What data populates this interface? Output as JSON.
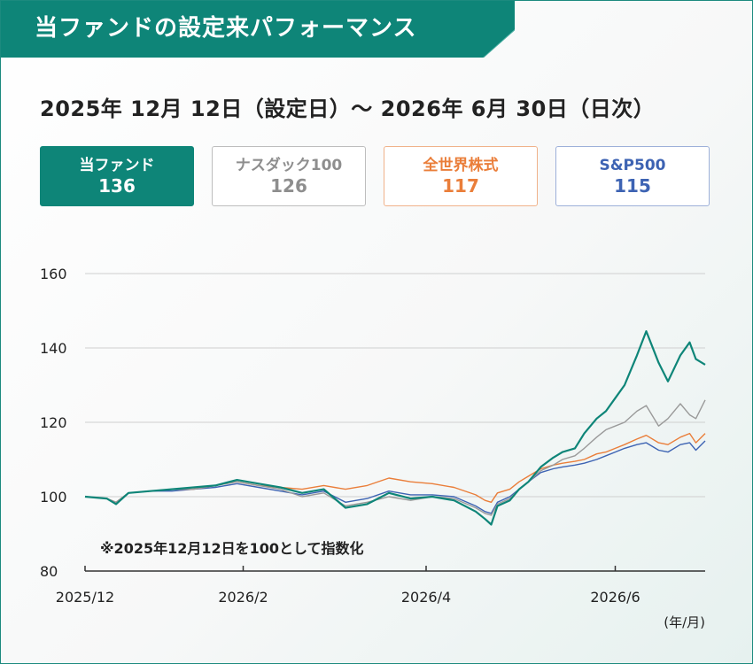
{
  "header": {
    "title": "当ファンドの設定来パフォーマンス",
    "period": "2025年 12月 12日（設定日）～ 2026年 6月 30日（日次）"
  },
  "legend": [
    {
      "name": "当ファンド",
      "value": "136",
      "color": "#0e8578"
    },
    {
      "name": "ナスダック100",
      "value": "126",
      "color": "#9a9a9a"
    },
    {
      "name": "全世界株式",
      "value": "117",
      "color": "#ea7e3a"
    },
    {
      "name": "S&P500",
      "value": "115",
      "color": "#3d63b3"
    }
  ],
  "chart_data": {
    "type": "line",
    "title": "当ファンドの設定来パフォーマンス",
    "xlabel": "",
    "ylabel": "",
    "x_unit": "(年/月)",
    "note": "※2025年12月12日を100として指数化",
    "ylim": [
      80,
      160
    ],
    "yticks": [
      80,
      100,
      120,
      140,
      160
    ],
    "x_range": [
      "2025-12-12",
      "2026-06-30"
    ],
    "x_tick_labels": [
      {
        "label": "2025/12",
        "date": "2025-12-12"
      },
      {
        "label": "2026/2",
        "date": "2026-02-01"
      },
      {
        "label": "2026/4",
        "date": "2026-04-01"
      },
      {
        "label": "2026/6",
        "date": "2026-06-01"
      }
    ],
    "grid": "horizontal",
    "series": [
      {
        "name": "当ファンド",
        "color": "#0e8578",
        "points": [
          [
            "2025-12-12",
            100
          ],
          [
            "2025-12-19",
            99.5
          ],
          [
            "2025-12-22",
            98
          ],
          [
            "2025-12-26",
            101
          ],
          [
            "2026-01-02",
            101.5
          ],
          [
            "2026-01-09",
            102
          ],
          [
            "2026-01-16",
            102.5
          ],
          [
            "2026-01-23",
            103
          ],
          [
            "2026-01-30",
            104.5
          ],
          [
            "2026-02-06",
            103.5
          ],
          [
            "2026-02-13",
            102.5
          ],
          [
            "2026-02-20",
            101
          ],
          [
            "2026-02-27",
            102
          ],
          [
            "2026-03-06",
            97
          ],
          [
            "2026-03-13",
            98
          ],
          [
            "2026-03-20",
            101
          ],
          [
            "2026-03-27",
            99.5
          ],
          [
            "2026-04-03",
            100
          ],
          [
            "2026-04-10",
            99
          ],
          [
            "2026-04-17",
            96
          ],
          [
            "2026-04-20",
            94
          ],
          [
            "2026-04-22",
            92.5
          ],
          [
            "2026-04-24",
            97.5
          ],
          [
            "2026-04-28",
            99
          ],
          [
            "2026-05-01",
            102
          ],
          [
            "2026-05-04",
            104
          ],
          [
            "2026-05-08",
            108
          ],
          [
            "2026-05-12",
            110.5
          ],
          [
            "2026-05-15",
            112
          ],
          [
            "2026-05-19",
            113
          ],
          [
            "2026-05-22",
            117
          ],
          [
            "2026-05-26",
            121
          ],
          [
            "2026-05-29",
            123
          ],
          [
            "2026-06-01",
            126.5
          ],
          [
            "2026-06-04",
            130
          ],
          [
            "2026-06-08",
            138
          ],
          [
            "2026-06-11",
            144.5
          ],
          [
            "2026-06-15",
            136
          ],
          [
            "2026-06-18",
            131
          ],
          [
            "2026-06-22",
            138
          ],
          [
            "2026-06-25",
            141.5
          ],
          [
            "2026-06-27",
            137
          ],
          [
            "2026-06-30",
            135.5
          ]
        ]
      },
      {
        "name": "ナスダック100",
        "color": "#9a9a9a",
        "points": [
          [
            "2025-12-12",
            100
          ],
          [
            "2025-12-19",
            99.5
          ],
          [
            "2025-12-22",
            98.5
          ],
          [
            "2025-12-26",
            101
          ],
          [
            "2026-01-02",
            101.5
          ],
          [
            "2026-01-09",
            102
          ],
          [
            "2026-01-16",
            102
          ],
          [
            "2026-01-23",
            103
          ],
          [
            "2026-01-30",
            104
          ],
          [
            "2026-02-06",
            103
          ],
          [
            "2026-02-13",
            102
          ],
          [
            "2026-02-20",
            100
          ],
          [
            "2026-02-27",
            101
          ],
          [
            "2026-03-06",
            97.5
          ],
          [
            "2026-03-13",
            98.5
          ],
          [
            "2026-03-20",
            100
          ],
          [
            "2026-03-27",
            99
          ],
          [
            "2026-04-03",
            100
          ],
          [
            "2026-04-10",
            99.5
          ],
          [
            "2026-04-17",
            97
          ],
          [
            "2026-04-20",
            95.5
          ],
          [
            "2026-04-22",
            95
          ],
          [
            "2026-04-24",
            98
          ],
          [
            "2026-04-28",
            99.5
          ],
          [
            "2026-05-01",
            102
          ],
          [
            "2026-05-04",
            104
          ],
          [
            "2026-05-08",
            107
          ],
          [
            "2026-05-12",
            108.5
          ],
          [
            "2026-05-15",
            110
          ],
          [
            "2026-05-19",
            111
          ],
          [
            "2026-05-22",
            113
          ],
          [
            "2026-05-26",
            116
          ],
          [
            "2026-05-29",
            118
          ],
          [
            "2026-06-01",
            119
          ],
          [
            "2026-06-04",
            120
          ],
          [
            "2026-06-08",
            123
          ],
          [
            "2026-06-11",
            124.5
          ],
          [
            "2026-06-15",
            119
          ],
          [
            "2026-06-18",
            121
          ],
          [
            "2026-06-22",
            125
          ],
          [
            "2026-06-25",
            122
          ],
          [
            "2026-06-27",
            121
          ],
          [
            "2026-06-30",
            126
          ]
        ]
      },
      {
        "name": "全世界株式",
        "color": "#ea7e3a",
        "points": [
          [
            "2025-12-12",
            100
          ],
          [
            "2025-12-19",
            99.5
          ],
          [
            "2025-12-22",
            98.5
          ],
          [
            "2025-12-26",
            101
          ],
          [
            "2026-01-02",
            101.5
          ],
          [
            "2026-01-09",
            102
          ],
          [
            "2026-01-16",
            102
          ],
          [
            "2026-01-23",
            103
          ],
          [
            "2026-01-30",
            104
          ],
          [
            "2026-02-06",
            103
          ],
          [
            "2026-02-13",
            102.5
          ],
          [
            "2026-02-20",
            102
          ],
          [
            "2026-02-27",
            103
          ],
          [
            "2026-03-06",
            102
          ],
          [
            "2026-03-13",
            103
          ],
          [
            "2026-03-20",
            105
          ],
          [
            "2026-03-27",
            104
          ],
          [
            "2026-04-03",
            103.5
          ],
          [
            "2026-04-10",
            102.5
          ],
          [
            "2026-04-17",
            100.5
          ],
          [
            "2026-04-20",
            99
          ],
          [
            "2026-04-22",
            98.5
          ],
          [
            "2026-04-24",
            101
          ],
          [
            "2026-04-28",
            102
          ],
          [
            "2026-05-01",
            104
          ],
          [
            "2026-05-04",
            105.5
          ],
          [
            "2026-05-08",
            107.5
          ],
          [
            "2026-05-12",
            108.5
          ],
          [
            "2026-05-15",
            109
          ],
          [
            "2026-05-19",
            109.5
          ],
          [
            "2026-05-22",
            110
          ],
          [
            "2026-05-26",
            111.5
          ],
          [
            "2026-05-29",
            112
          ],
          [
            "2026-06-01",
            113
          ],
          [
            "2026-06-04",
            114
          ],
          [
            "2026-06-08",
            115.5
          ],
          [
            "2026-06-11",
            116.5
          ],
          [
            "2026-06-15",
            114.5
          ],
          [
            "2026-06-18",
            114
          ],
          [
            "2026-06-22",
            116
          ],
          [
            "2026-06-25",
            117
          ],
          [
            "2026-06-27",
            114.5
          ],
          [
            "2026-06-30",
            117
          ]
        ]
      },
      {
        "name": "S&P500",
        "color": "#3d63b3",
        "points": [
          [
            "2025-12-12",
            100
          ],
          [
            "2025-12-19",
            99.5
          ],
          [
            "2025-12-22",
            98.5
          ],
          [
            "2025-12-26",
            101
          ],
          [
            "2026-01-02",
            101.5
          ],
          [
            "2026-01-09",
            101.5
          ],
          [
            "2026-01-16",
            102
          ],
          [
            "2026-01-23",
            102.5
          ],
          [
            "2026-01-30",
            103.5
          ],
          [
            "2026-02-06",
            102.5
          ],
          [
            "2026-02-13",
            101.5
          ],
          [
            "2026-02-20",
            100.5
          ],
          [
            "2026-02-27",
            101.5
          ],
          [
            "2026-03-06",
            98.5
          ],
          [
            "2026-03-13",
            99.5
          ],
          [
            "2026-03-20",
            101.5
          ],
          [
            "2026-03-27",
            100.5
          ],
          [
            "2026-04-03",
            100.5
          ],
          [
            "2026-04-10",
            100
          ],
          [
            "2026-04-17",
            97.5
          ],
          [
            "2026-04-20",
            96
          ],
          [
            "2026-04-22",
            95.5
          ],
          [
            "2026-04-24",
            98.5
          ],
          [
            "2026-04-28",
            100
          ],
          [
            "2026-05-01",
            102
          ],
          [
            "2026-05-04",
            104
          ],
          [
            "2026-05-08",
            106.5
          ],
          [
            "2026-05-12",
            107.5
          ],
          [
            "2026-05-15",
            108
          ],
          [
            "2026-05-19",
            108.5
          ],
          [
            "2026-05-22",
            109
          ],
          [
            "2026-05-26",
            110
          ],
          [
            "2026-05-29",
            111
          ],
          [
            "2026-06-01",
            112
          ],
          [
            "2026-06-04",
            113
          ],
          [
            "2026-06-08",
            114
          ],
          [
            "2026-06-11",
            114.5
          ],
          [
            "2026-06-15",
            112.5
          ],
          [
            "2026-06-18",
            112
          ],
          [
            "2026-06-22",
            114
          ],
          [
            "2026-06-25",
            114.5
          ],
          [
            "2026-06-27",
            112.5
          ],
          [
            "2026-06-30",
            115
          ]
        ]
      }
    ]
  }
}
